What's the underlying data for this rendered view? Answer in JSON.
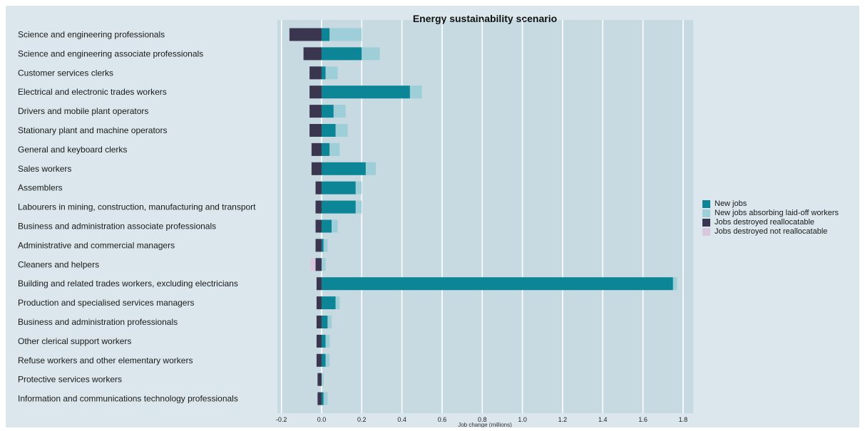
{
  "chart_data": {
    "type": "bar",
    "orientation": "horizontal",
    "stacked": true,
    "title": "Energy sustainability scenario",
    "xlabel": "Job change (millions)",
    "xlim": [
      -0.22,
      1.85
    ],
    "xticks": [
      -0.2,
      0.0,
      0.2,
      0.4,
      0.6,
      0.8,
      1.0,
      1.2,
      1.4,
      1.6,
      1.8
    ],
    "xtick_labels": [
      "-0.2",
      "0.0",
      "0.2",
      "0.4",
      "0.6",
      "0.8",
      "1.0",
      "1.2",
      "1.4",
      "1.6",
      "1.8"
    ],
    "grid": true,
    "legend_position": "right",
    "categories": [
      "Science and engineering professionals",
      "Science and engineering associate professionals",
      "Customer services clerks",
      "Electrical and electronic trades workers",
      "Drivers and mobile plant operators",
      "Stationary plant and machine operators",
      "General and keyboard clerks",
      "Sales workers",
      "Assemblers",
      "Labourers in mining, construction, manufacturing and transport",
      "Business and administration associate professionals",
      "Administrative and commercial managers",
      "Cleaners and helpers",
      "Building and related trades workers, excluding electricians",
      "Production and specialised services managers",
      "Business and administration professionals",
      "Other clerical support workers",
      "Refuse workers and other elementary workers",
      "Protective services workers",
      "Information and communications technology professionals"
    ],
    "series": [
      {
        "name": "New jobs",
        "color": "#0c8697",
        "values": [
          0.04,
          0.2,
          0.02,
          0.44,
          0.06,
          0.07,
          0.04,
          0.22,
          0.17,
          0.17,
          0.05,
          0.01,
          0.0,
          1.75,
          0.07,
          0.03,
          0.02,
          0.02,
          0.0,
          0.01
        ]
      },
      {
        "name": "New jobs absorbing laid-off workers",
        "color": "#9ecfd8",
        "values": [
          0.16,
          0.09,
          0.06,
          0.06,
          0.06,
          0.06,
          0.05,
          0.05,
          0.03,
          0.03,
          0.03,
          0.02,
          0.02,
          0.02,
          0.02,
          0.02,
          0.02,
          0.02,
          0.01,
          0.02
        ]
      },
      {
        "name": "Jobs destroyed reallocatable",
        "color": "#3a3650",
        "values": [
          -0.16,
          -0.09,
          -0.06,
          -0.06,
          -0.06,
          -0.06,
          -0.05,
          -0.05,
          -0.03,
          -0.03,
          -0.03,
          -0.03,
          -0.03,
          -0.025,
          -0.025,
          -0.025,
          -0.025,
          -0.025,
          -0.02,
          -0.02
        ]
      },
      {
        "name": "Jobs destroyed not reallocatable",
        "color": "#d8c8de",
        "values": [
          0,
          0,
          0,
          0,
          0,
          0,
          0,
          0,
          0,
          0,
          0,
          0,
          -0.025,
          0,
          0,
          0,
          0,
          0,
          0,
          0
        ]
      }
    ]
  }
}
